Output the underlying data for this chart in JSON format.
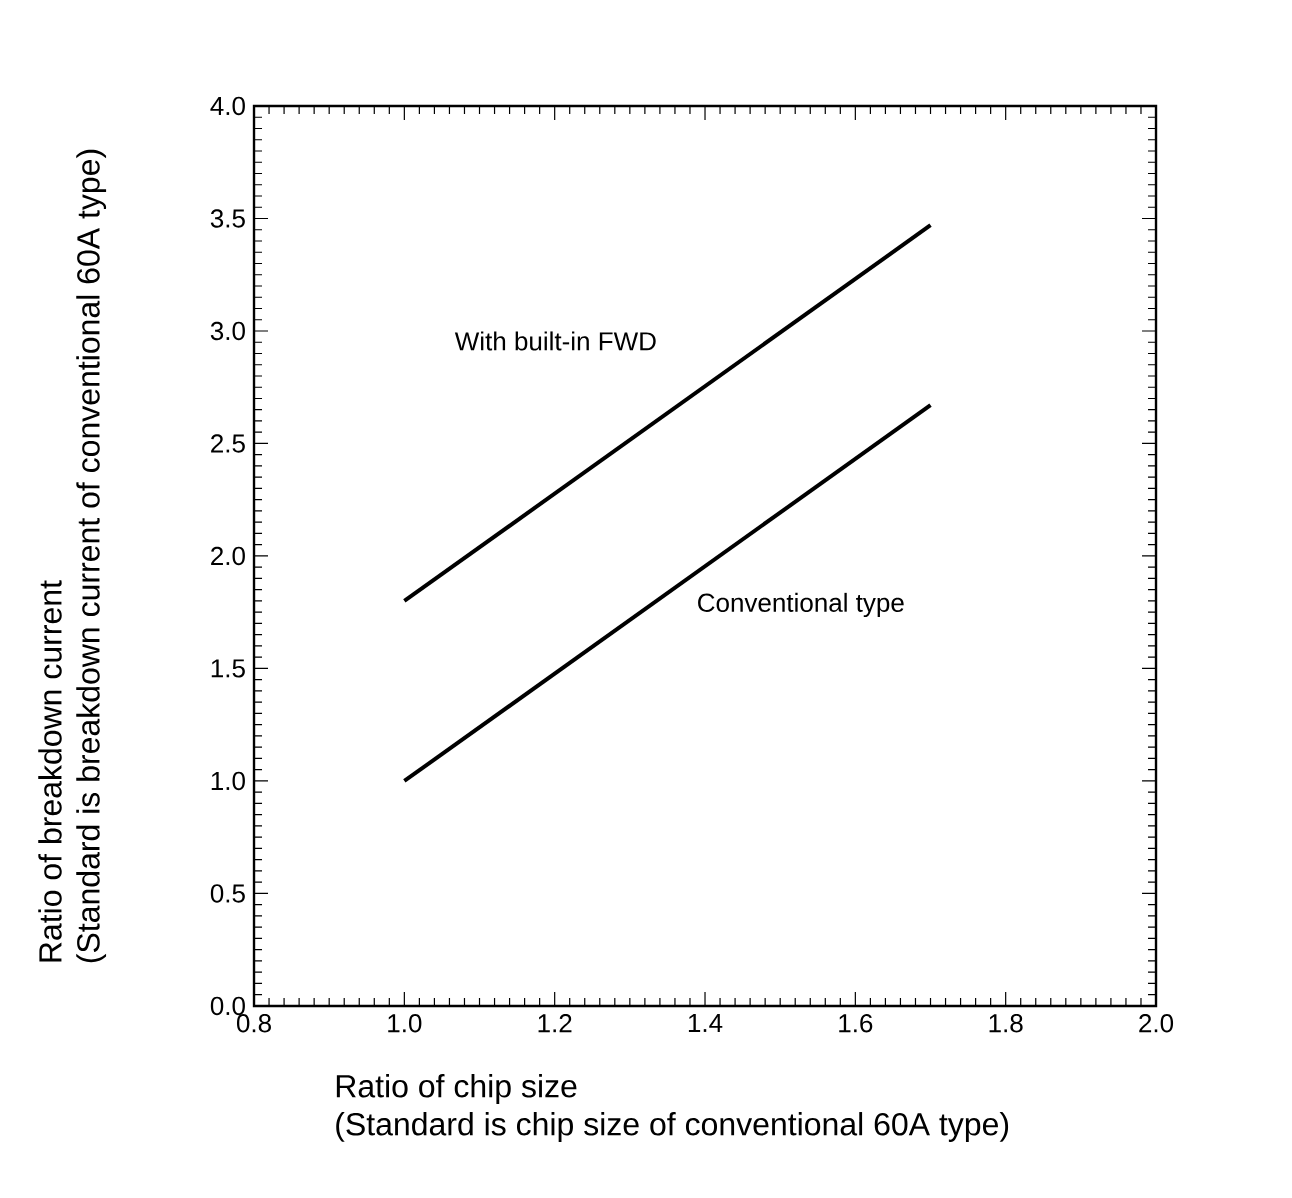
{
  "chart_data": {
    "type": "line",
    "xlabel": "Ratio of chip size\n(Standard is chip size of conventional 60A type)",
    "ylabel": "Ratio of breakdown current\n(Standard is breakdown current of conventional 60A type)",
    "x": [
      1.0,
      1.7
    ],
    "series": [
      {
        "name": "With built-in FWD",
        "color": "#000000",
        "values": [
          1.8,
          3.47
        ]
      },
      {
        "name": "Conventional type",
        "color": "#000000",
        "values": [
          1.0,
          2.67
        ]
      }
    ],
    "xlim": [
      0.8,
      2.0
    ],
    "xticks": [
      0.8,
      {
        "value": 1.0,
        "label": "1.0"
      },
      1.2,
      1.4,
      1.6,
      1.8,
      {
        "value": 2.0,
        "label": "2.0"
      }
    ],
    "ylim": [
      0.0,
      4.0
    ],
    "yticks": [
      {
        "value": 0.0,
        "label": "0.0"
      },
      0.5,
      {
        "value": 1.0,
        "label": "1.0"
      },
      1.5,
      {
        "value": 2.0,
        "label": "2.0"
      },
      2.5,
      {
        "value": 3.0,
        "label": "3.0"
      },
      3.5,
      {
        "value": 4.0,
        "label": "4.0"
      }
    ],
    "grid": false,
    "legend": false,
    "marker": "none",
    "line_style": "solid"
  }
}
